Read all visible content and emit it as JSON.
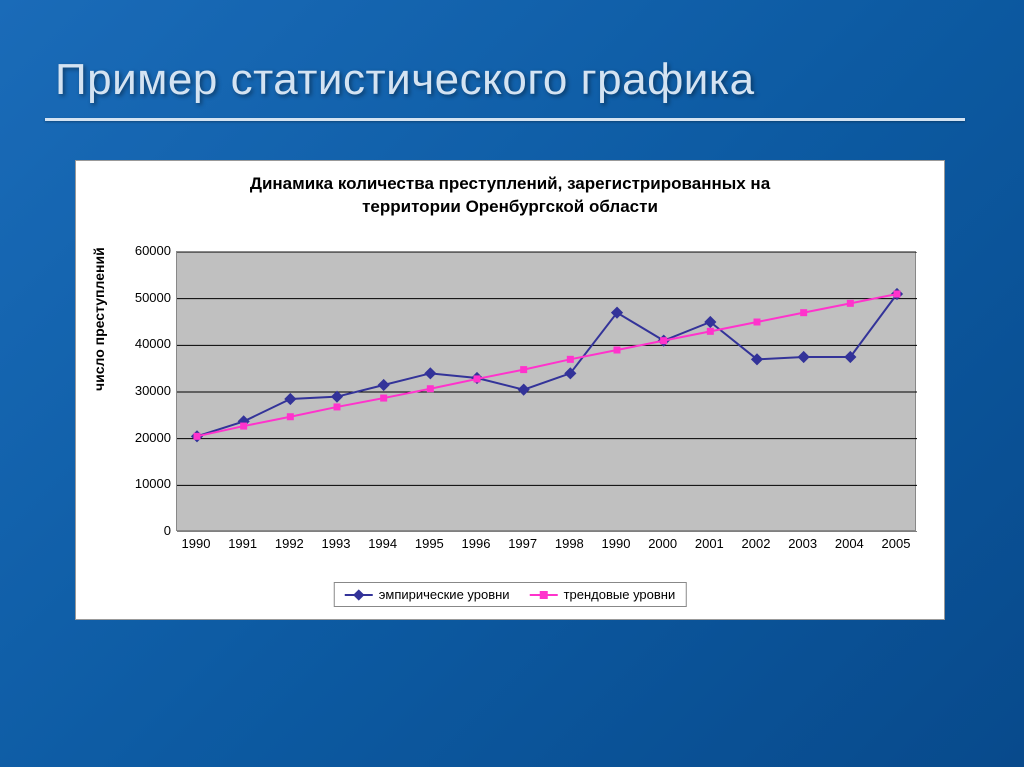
{
  "slide": {
    "title": "Пример статистического графика",
    "background_gradient": [
      "#1a6bb8",
      "#0d5ba3",
      "#084a8c"
    ],
    "title_color": "#d4e3f2"
  },
  "chart": {
    "type": "line",
    "title_line1": "Динамика количества преступлений, зарегистрированных на",
    "title_line2": "территории Оренбургской области",
    "title_fontsize": 17,
    "ylabel": "число преступлений",
    "ylabel_fontsize": 14,
    "background_color": "#ffffff",
    "plot_background_color": "#c0c0c0",
    "grid_color": "#000000",
    "x_categories": [
      "1990",
      "1991",
      "1992",
      "1993",
      "1994",
      "1995",
      "1996",
      "1997",
      "1998",
      "1990",
      "2000",
      "2001",
      "2002",
      "2003",
      "2004",
      "2005"
    ],
    "ylim": [
      0,
      60000
    ],
    "ytick_step": 10000,
    "y_ticks": [
      "0",
      "10000",
      "20000",
      "30000",
      "40000",
      "50000",
      "60000"
    ],
    "series": [
      {
        "name": "эмпирические уровни",
        "color": "#333399",
        "marker": "diamond",
        "marker_size": 7,
        "line_width": 2,
        "values": [
          20500,
          23700,
          28500,
          29000,
          31500,
          34000,
          33000,
          30500,
          34000,
          47000,
          41000,
          45000,
          37000,
          37500,
          37500,
          51000
        ]
      },
      {
        "name": "трендовые уровни",
        "color": "#ff33cc",
        "marker": "square",
        "marker_size": 6,
        "line_width": 2,
        "values": [
          20500,
          22700,
          24700,
          26800,
          28700,
          30700,
          32800,
          34800,
          37000,
          39000,
          41000,
          43000,
          45000,
          47000,
          49000,
          51000
        ]
      }
    ],
    "legend_position": "bottom"
  }
}
